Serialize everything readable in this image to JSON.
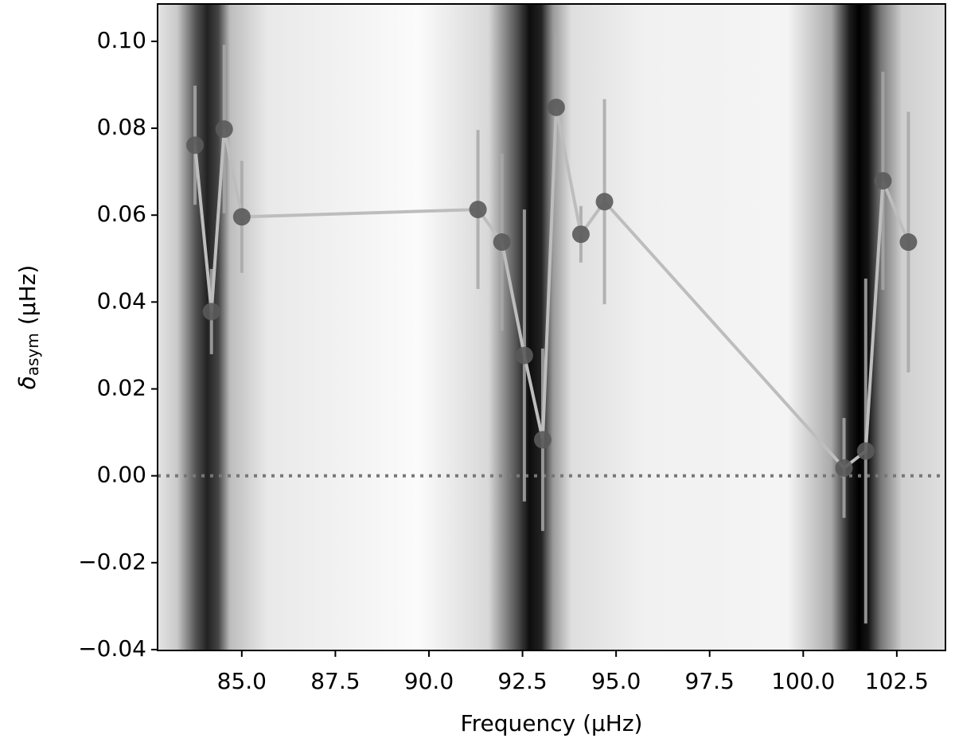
{
  "chart_data": {
    "type": "errorbar-line",
    "xlabel": "Frequency (μHz)",
    "ylabel": {
      "symbol": "δ",
      "subscript": "asym",
      "unit": "(μHz)"
    },
    "x": [
      83.75,
      84.19,
      84.53,
      85.0,
      91.31,
      91.95,
      92.55,
      93.04,
      93.4,
      94.06,
      94.69,
      101.09,
      101.67,
      102.13,
      102.81
    ],
    "values": [
      0.0761,
      0.0378,
      0.0798,
      0.0596,
      0.0613,
      0.0538,
      0.0277,
      0.0083,
      0.0848,
      0.0556,
      0.0631,
      0.0018,
      0.0057,
      0.0679,
      0.0538
    ],
    "errors": [
      0.0137,
      0.0098,
      0.0194,
      0.0129,
      0.0183,
      0.0204,
      0.0336,
      0.021,
      0.0169,
      0.0065,
      0.0236,
      0.0115,
      0.0397,
      0.0251,
      0.03
    ],
    "color": "#5a5a5a",
    "line_color": "#bdbdbd",
    "error_color": "#a8a8a8",
    "hline": 0,
    "xlim": [
      82.75,
      103.8
    ],
    "ylim": [
      -0.0402,
      0.1086
    ],
    "xticks": [
      {
        "value": 85,
        "label": "85.0"
      },
      87.5,
      {
        "value": 90,
        "label": "90.0"
      },
      92.5,
      {
        "value": 95,
        "label": "95.0"
      },
      97.5,
      {
        "value": 100,
        "label": "100.0"
      },
      102.5
    ],
    "yticks": [
      {
        "value": -0.04,
        "label": "−0.04"
      },
      {
        "value": -0.02,
        "label": "−0.02"
      },
      {
        "value": 0,
        "label": "0.00"
      },
      {
        "value": 0.02,
        "label": "0.02"
      },
      {
        "value": 0.04,
        "label": "0.04"
      },
      {
        "value": 0.06,
        "label": "0.06"
      },
      {
        "value": 0.08,
        "label": "0.08"
      },
      {
        "value": 0.1,
        "label": "0.10"
      }
    ]
  }
}
